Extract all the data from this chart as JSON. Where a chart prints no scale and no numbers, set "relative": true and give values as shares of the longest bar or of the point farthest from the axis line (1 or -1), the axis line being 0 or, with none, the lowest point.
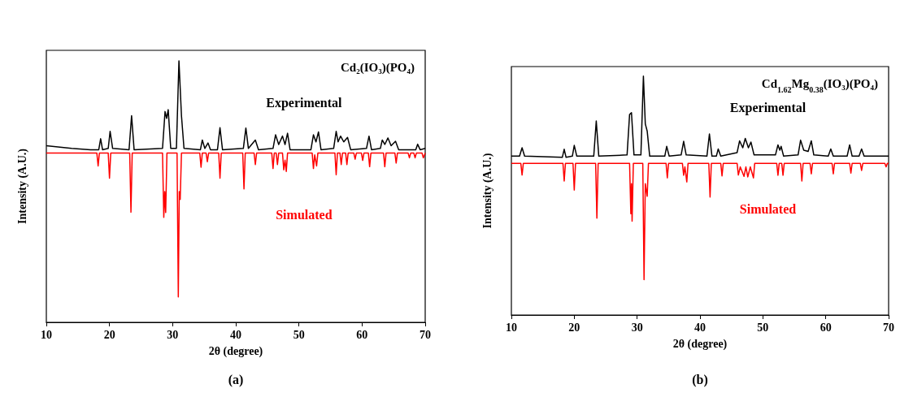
{
  "chart_data": [
    {
      "type": "line",
      "relative": true,
      "title": "Cd₂(IO₃)(PO₄)",
      "xlabel": "2θ (degree)",
      "ylabel": "Intensity (A.U.)",
      "xlim": [
        10,
        70
      ],
      "xticks": [
        10,
        20,
        30,
        40,
        50,
        60,
        70
      ],
      "annotations": [
        "(a)"
      ],
      "series": [
        {
          "name": "Experimental",
          "color": "#000000",
          "x": [
            10,
            14,
            17,
            18.3,
            18.6,
            18.9,
            19.8,
            20.1,
            20.5,
            23.1,
            23.5,
            23.9,
            28.4,
            28.8,
            29.05,
            29.3,
            29.7,
            30.6,
            31.0,
            31.4,
            31.8,
            34.4,
            34.7,
            35.1,
            35.6,
            36.0,
            37.1,
            37.5,
            37.9,
            41.2,
            41.6,
            42.0,
            43.1,
            43.6,
            45.9,
            46.3,
            46.8,
            47.4,
            47.8,
            48.2,
            48.6,
            51.9,
            52.3,
            52.7,
            53.1,
            53.5,
            55.5,
            55.9,
            56.2,
            56.6,
            57.1,
            57.7,
            58.2,
            60.7,
            61.1,
            61.5,
            62.9,
            63.2,
            63.6,
            64.1,
            64.6,
            65.3,
            65.8,
            68.5,
            68.8,
            69.2,
            70
          ],
          "values": [
            0.675,
            0.665,
            0.66,
            0.66,
            0.702,
            0.66,
            0.665,
            0.73,
            0.665,
            0.66,
            0.79,
            0.66,
            0.665,
            0.806,
            0.78,
            0.813,
            0.665,
            0.665,
            1.0,
            0.79,
            0.665,
            0.66,
            0.697,
            0.665,
            0.686,
            0.66,
            0.66,
            0.744,
            0.66,
            0.665,
            0.743,
            0.665,
            0.697,
            0.66,
            0.665,
            0.717,
            0.68,
            0.712,
            0.68,
            0.723,
            0.66,
            0.66,
            0.717,
            0.69,
            0.728,
            0.66,
            0.665,
            0.73,
            0.69,
            0.712,
            0.69,
            0.707,
            0.66,
            0.665,
            0.712,
            0.66,
            0.665,
            0.697,
            0.68,
            0.705,
            0.675,
            0.692,
            0.66,
            0.66,
            0.681,
            0.66,
            0.665
          ]
        },
        {
          "name": "Simulated",
          "color": "#ff0000",
          "x": [
            10,
            18.0,
            18.2,
            18.4,
            19.8,
            20.0,
            20.2,
            23.2,
            23.4,
            23.6,
            28.4,
            28.6,
            28.75,
            28.9,
            29.1,
            30.7,
            30.9,
            31.05,
            31.2,
            31.4,
            34.3,
            34.5,
            34.7,
            35.3,
            35.5,
            35.7,
            37.3,
            37.5,
            37.7,
            41.1,
            41.3,
            41.5,
            42.9,
            43.1,
            43.3,
            45.7,
            45.9,
            46.1,
            46.4,
            46.6,
            46.8,
            47.4,
            47.6,
            47.8,
            48.0,
            48.2,
            52.1,
            52.3,
            52.5,
            52.8,
            53.0,
            55.7,
            55.9,
            56.1,
            56.5,
            56.7,
            56.9,
            57.4,
            57.6,
            57.8,
            58.7,
            58.9,
            59.1,
            59.9,
            60.1,
            60.3,
            61.0,
            61.2,
            61.4,
            63.4,
            63.6,
            63.8,
            65.2,
            65.4,
            65.6,
            67.3,
            67.5,
            67.7,
            68.2,
            68.4,
            68.6,
            69.5,
            69.7,
            70
          ],
          "values": [
            0.647,
            0.647,
            0.598,
            0.647,
            0.647,
            0.551,
            0.647,
            0.647,
            0.421,
            0.647,
            0.647,
            0.401,
            0.5,
            0.42,
            0.647,
            0.647,
            0.097,
            0.5,
            0.47,
            0.647,
            0.647,
            0.593,
            0.647,
            0.647,
            0.614,
            0.647,
            0.647,
            0.551,
            0.647,
            0.647,
            0.51,
            0.647,
            0.647,
            0.603,
            0.647,
            0.647,
            0.588,
            0.647,
            0.647,
            0.603,
            0.647,
            0.647,
            0.583,
            0.62,
            0.577,
            0.647,
            0.647,
            0.588,
            0.64,
            0.598,
            0.647,
            0.647,
            0.564,
            0.647,
            0.647,
            0.603,
            0.647,
            0.647,
            0.603,
            0.647,
            0.647,
            0.624,
            0.647,
            0.647,
            0.619,
            0.647,
            0.647,
            0.595,
            0.647,
            0.647,
            0.595,
            0.647,
            0.647,
            0.609,
            0.647,
            0.647,
            0.629,
            0.647,
            0.647,
            0.629,
            0.647,
            0.647,
            0.629,
            0.647
          ]
        }
      ]
    },
    {
      "type": "line",
      "relative": true,
      "title": "Cd$_{1.62}$Mg$_{0.38}$(IO₃)(PO₄)",
      "xlabel": "2θ (degree)",
      "ylabel": "Intensity (A.U.)",
      "xlim": [
        10,
        70
      ],
      "xticks": [
        10,
        20,
        30,
        40,
        50,
        60,
        70
      ],
      "annotations": [
        "(b)"
      ],
      "series": [
        {
          "name": "Experimental",
          "color": "#000000",
          "x": [
            10,
            11.3,
            11.7,
            12.1,
            18.1,
            18.4,
            18.7,
            19.7,
            20.0,
            20.4,
            23.1,
            23.5,
            23.9,
            28.4,
            28.8,
            29.1,
            29.5,
            30.6,
            31.0,
            31.3,
            31.6,
            32.0,
            34.4,
            34.7,
            35.1,
            37.0,
            37.4,
            37.8,
            41.1,
            41.5,
            41.9,
            42.6,
            42.9,
            43.3,
            45.9,
            46.3,
            46.8,
            47.2,
            47.7,
            48.1,
            48.6,
            52.0,
            52.4,
            52.7,
            52.9,
            53.3,
            55.6,
            56.0,
            56.5,
            57.2,
            57.7,
            58.1,
            60.4,
            60.8,
            61.2,
            63.4,
            63.8,
            64.2,
            65.3,
            65.7,
            66.1,
            70
          ],
          "values": [
            0.665,
            0.665,
            0.7,
            0.665,
            0.66,
            0.694,
            0.66,
            0.665,
            0.71,
            0.665,
            0.665,
            0.812,
            0.665,
            0.67,
            0.839,
            0.847,
            0.67,
            0.67,
            1.0,
            0.8,
            0.77,
            0.665,
            0.665,
            0.706,
            0.665,
            0.67,
            0.727,
            0.67,
            0.665,
            0.758,
            0.665,
            0.665,
            0.695,
            0.665,
            0.68,
            0.729,
            0.7,
            0.739,
            0.7,
            0.724,
            0.67,
            0.67,
            0.712,
            0.69,
            0.706,
            0.665,
            0.67,
            0.732,
            0.69,
            0.685,
            0.729,
            0.67,
            0.665,
            0.695,
            0.665,
            0.665,
            0.712,
            0.665,
            0.665,
            0.695,
            0.665,
            0.665
          ]
        },
        {
          "name": "Simulated",
          "color": "#ff0000",
          "x": [
            10,
            11.5,
            11.7,
            11.9,
            18.2,
            18.4,
            18.6,
            19.8,
            20.0,
            20.2,
            23.4,
            23.6,
            23.8,
            28.8,
            29.0,
            29.1,
            29.2,
            29.4,
            30.9,
            31.1,
            31.3,
            31.6,
            31.8,
            34.6,
            34.8,
            35.0,
            37.2,
            37.4,
            37.6,
            37.9,
            38.1,
            41.4,
            41.6,
            41.8,
            43.3,
            43.5,
            43.7,
            45.9,
            46.1,
            46.4,
            47.0,
            47.3,
            47.6,
            48.0,
            48.5,
            48.7,
            52.2,
            52.4,
            52.6,
            53.0,
            53.2,
            53.4,
            56.0,
            56.2,
            56.4,
            57.5,
            57.7,
            57.9,
            61.0,
            61.2,
            61.4,
            63.8,
            64.0,
            64.2,
            65.5,
            65.7,
            65.9,
            69.4,
            69.6,
            69.8,
            70
          ],
          "values": [
            0.635,
            0.635,
            0.586,
            0.635,
            0.635,
            0.561,
            0.635,
            0.635,
            0.523,
            0.635,
            0.635,
            0.405,
            0.635,
            0.635,
            0.424,
            0.55,
            0.393,
            0.635,
            0.635,
            0.148,
            0.55,
            0.497,
            0.635,
            0.635,
            0.574,
            0.635,
            0.635,
            0.585,
            0.62,
            0.557,
            0.635,
            0.635,
            0.494,
            0.635,
            0.635,
            0.582,
            0.635,
            0.635,
            0.586,
            0.62,
            0.58,
            0.62,
            0.578,
            0.62,
            0.574,
            0.635,
            0.635,
            0.585,
            0.635,
            0.635,
            0.585,
            0.635,
            0.635,
            0.561,
            0.635,
            0.635,
            0.591,
            0.635,
            0.635,
            0.591,
            0.635,
            0.635,
            0.594,
            0.635,
            0.635,
            0.605,
            0.635,
            0.635,
            0.62,
            0.635,
            0.635
          ]
        }
      ]
    }
  ]
}
